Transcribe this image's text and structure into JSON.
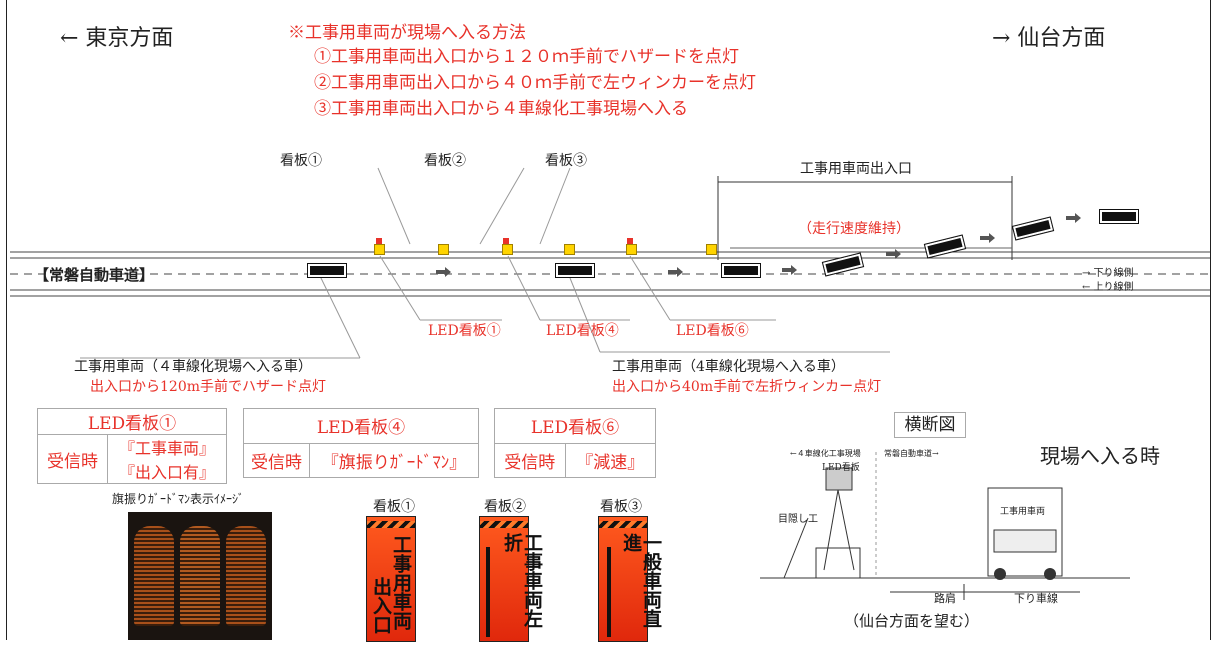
{
  "directions": {
    "left": "←  東京方面",
    "right": "→  仙台方面"
  },
  "procedure": {
    "title": "※工事用車両が現場へ入る方法",
    "steps": [
      "①工事用車両出入口から１２０ｍ手前でハザードを点灯",
      "②工事用車両出入口から４０ｍ手前で左ウィンカーを点灯",
      "③工事用車両出入口から４車線化工事現場へ入る"
    ]
  },
  "signs_top": [
    "看板①",
    "看板②",
    "看板③"
  ],
  "entrance_label": "工事用車両出入口",
  "speed_label": "（走行速度維持）",
  "road_label": "【常磐自動車道】",
  "lanes": {
    "down": "→ 下り線側",
    "up": "← 上り線側"
  },
  "led_labels": [
    "LED看板①",
    "LED看板④",
    "LED看板⑥"
  ],
  "vehicle_notes": [
    {
      "title": "工事用車両（４車線化現場へ入る車）",
      "detail": "出入口から120m手前でハザード点灯"
    },
    {
      "title": "工事用車両（4車線化現場へ入る車）",
      "detail": "出入口から40m手前で左折ウィンカー点灯"
    }
  ],
  "led_tables": [
    {
      "header": "LED看板①",
      "cond": "受信時",
      "msg": "『工事車両』『出入口有』"
    },
    {
      "header": "LED看板④",
      "cond": "受信時",
      "msg": "『旗振りｶﾞｰﾄﾞﾏﾝ』"
    },
    {
      "header": "LED看板⑥",
      "cond": "受信時",
      "msg": "『減速』"
    }
  ],
  "guardman_caption": "旗振りｶﾞｰﾄﾞﾏﾝ表示ｲﾒｰｼﾞ",
  "sign_panels": [
    {
      "label": "看板①",
      "text_a": "工事用車両",
      "text_b": "出入口"
    },
    {
      "label": "看板②",
      "text_a": "工事車両左折"
    },
    {
      "label": "看板③",
      "text_a": "一般車両直進"
    }
  ],
  "cross_section": {
    "title": "横断図",
    "subtitle": "現場へ入る時",
    "left_zone": "←４車線化工事現場",
    "right_zone": "常磐自動車道→",
    "led": "LED看板",
    "screen": "目隠し工",
    "truck": "工事用車両",
    "shoulder": "路肩",
    "lane": "下り車線",
    "caption": "（仙台方面を望む）"
  }
}
